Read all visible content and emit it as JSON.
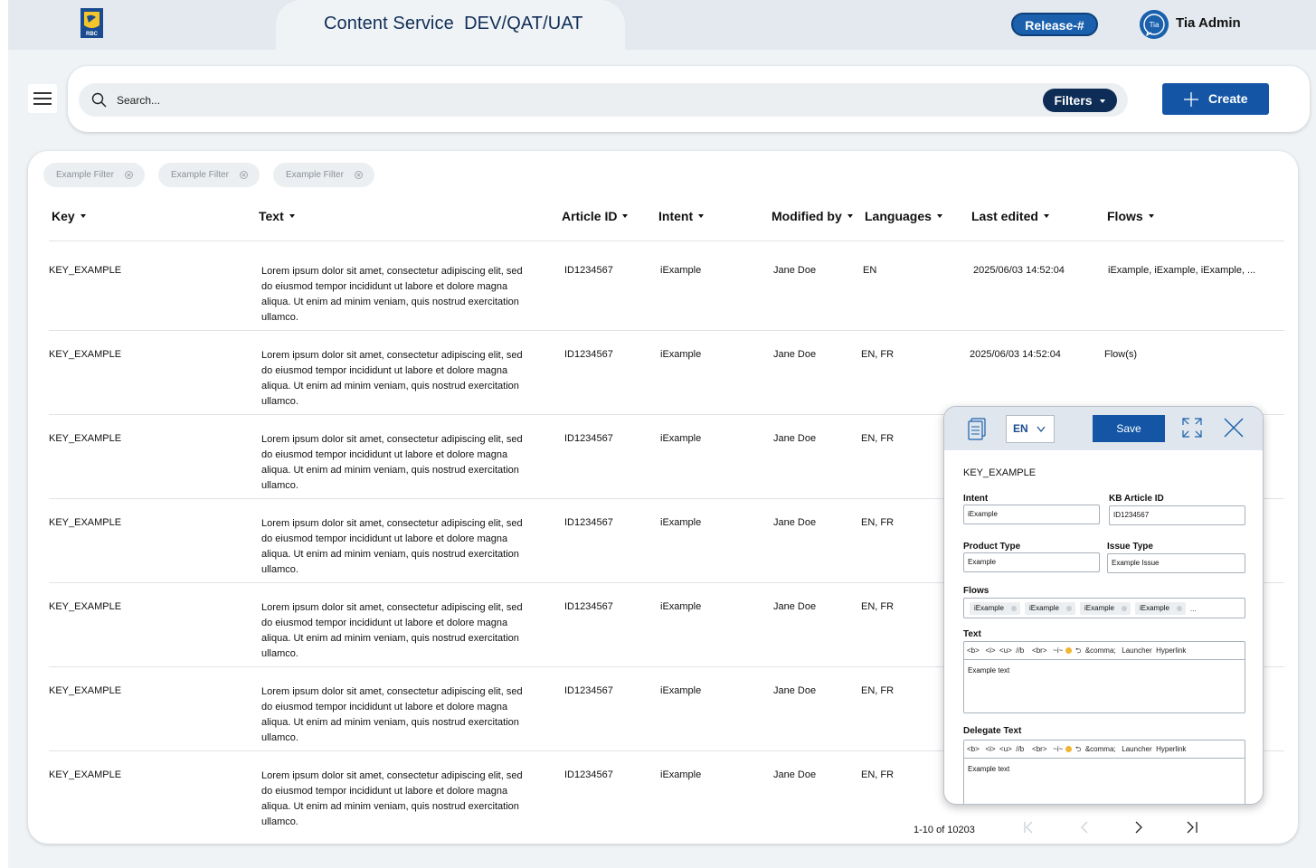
{
  "header": {
    "title": "Content Service  DEV/QAT/UAT",
    "logo_text": "RBC",
    "release_label": "Release-#",
    "avatar_text": "Tia",
    "user_name": "Tia Admin"
  },
  "search": {
    "placeholder": "Search...",
    "filters_label": "Filters",
    "create_label": "Create"
  },
  "filter_chips": [
    "Example Filter",
    "Example Filter",
    "Example Filter"
  ],
  "table": {
    "columns": [
      "Key",
      "Text",
      "Article ID",
      "Intent",
      "Modified by",
      "Languages",
      "Last edited",
      "Flows"
    ],
    "rows": [
      {
        "key": "KEY_EXAMPLE",
        "text": "Lorem ipsum dolor sit amet, consectetur adipiscing elit, sed do eiusmod tempor incididunt ut labore et dolore magna aliqua. Ut enim ad minim veniam, quis nostrud exercitation ullamco.",
        "article_id": "ID1234567",
        "intent": "iExample",
        "modified_by": "Jane Doe",
        "languages": "EN",
        "last_edited": "2025/06/03 14:52:04",
        "flows": "iExample, iExample, iExample, ..."
      },
      {
        "key": "KEY_EXAMPLE",
        "text": "Lorem ipsum dolor sit amet, consectetur adipiscing elit, sed do eiusmod tempor incididunt ut labore et dolore magna aliqua. Ut enim ad minim veniam, quis nostrud exercitation ullamco.",
        "article_id": "ID1234567",
        "intent": "iExample",
        "modified_by": "Jane Doe",
        "languages": "EN, FR",
        "last_edited": "2025/06/03 14:52:04",
        "flows": "Flow(s)"
      },
      {
        "key": "KEY_EXAMPLE",
        "text": "Lorem ipsum dolor sit amet, consectetur adipiscing elit, sed do eiusmod tempor incididunt ut labore et dolore magna aliqua. Ut enim ad minim veniam, quis nostrud exercitation ullamco.",
        "article_id": "ID1234567",
        "intent": "iExample",
        "modified_by": "Jane Doe",
        "languages": "EN, FR",
        "last_edited": "",
        "flows": ""
      },
      {
        "key": "KEY_EXAMPLE",
        "text": "Lorem ipsum dolor sit amet, consectetur adipiscing elit, sed do eiusmod tempor incididunt ut labore et dolore magna aliqua. Ut enim ad minim veniam, quis nostrud exercitation ullamco.",
        "article_id": "ID1234567",
        "intent": "iExample",
        "modified_by": "Jane Doe",
        "languages": "EN, FR",
        "last_edited": "",
        "flows": ""
      },
      {
        "key": "KEY_EXAMPLE",
        "text": "Lorem ipsum dolor sit amet, consectetur adipiscing elit, sed do eiusmod tempor incididunt ut labore et dolore magna aliqua. Ut enim ad minim veniam, quis nostrud exercitation ullamco.",
        "article_id": "ID1234567",
        "intent": "iExample",
        "modified_by": "Jane Doe",
        "languages": "EN, FR",
        "last_edited": "",
        "flows": ""
      },
      {
        "key": "KEY_EXAMPLE",
        "text": "Lorem ipsum dolor sit amet, consectetur adipiscing elit, sed do eiusmod tempor incididunt ut labore et dolore magna aliqua. Ut enim ad minim veniam, quis nostrud exercitation ullamco.",
        "article_id": "ID1234567",
        "intent": "iExample",
        "modified_by": "Jane Doe",
        "languages": "EN, FR",
        "last_edited": "",
        "flows": ""
      },
      {
        "key": "KEY_EXAMPLE",
        "text": "Lorem ipsum dolor sit amet, consectetur adipiscing elit, sed do eiusmod tempor incididunt ut labore et dolore magna aliqua. Ut enim ad minim veniam, quis nostrud exercitation ullamco.",
        "article_id": "ID1234567",
        "intent": "iExample",
        "modified_by": "Jane Doe",
        "languages": "EN, FR",
        "last_edited": "",
        "flows": ""
      }
    ]
  },
  "pagination": {
    "range_text": "1-10 of 10203"
  },
  "editor": {
    "language": "EN",
    "save_label": "Save",
    "key": "KEY_EXAMPLE",
    "intent_label": "Intent",
    "intent_value": "iExample",
    "kb_label": "KB Article ID",
    "kb_value": "ID1234567",
    "product_type_label": "Product Type",
    "product_type_value": "Example",
    "issue_type_label": "Issue Type",
    "issue_type_value": "Example Issue",
    "flows_label": "Flows",
    "flows": [
      "iExample",
      "iExample",
      "iExample",
      "iExample"
    ],
    "flows_more": "...",
    "text_label": "Text",
    "toolbar": "<b>   <i>  <u>  //b    <br>   ~i~",
    "toolbar_tail": "  ⮌  &comma;   Launcher  Hyperlink",
    "text_value": "Example text",
    "delegate_label": "Delegate Text",
    "delegate_value": "Example text"
  },
  "colors": {
    "brand_blue": "#1456a5",
    "navy": "#0d2c56",
    "title_color": "#0f2e57",
    "background": "#f0f3f6"
  }
}
